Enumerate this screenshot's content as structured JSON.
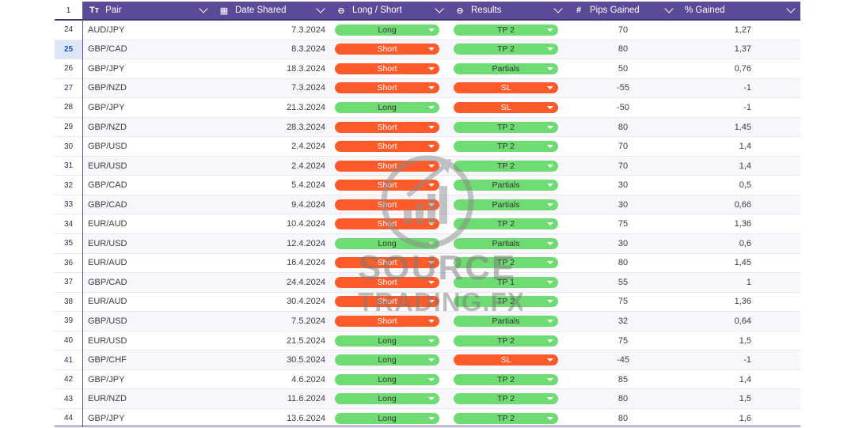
{
  "header": {
    "row_number": "1",
    "columns": [
      {
        "label": "Pair",
        "icon": "text-type-icon",
        "glyph": "Tт"
      },
      {
        "label": "Date Shared",
        "icon": "calendar-icon",
        "glyph": "▦"
      },
      {
        "label": "Long / Short",
        "icon": "dropdown-chip-icon",
        "glyph": "⊖"
      },
      {
        "label": "Results",
        "icon": "dropdown-chip-icon",
        "glyph": "⊖"
      },
      {
        "label": "Pips Gained",
        "icon": "number-icon",
        "glyph": "#"
      },
      {
        "label": "% Gained",
        "icon": "",
        "glyph": ""
      }
    ]
  },
  "selected_row": "25",
  "colors": {
    "header_bg": "#5a4a97",
    "long": "#6edb73",
    "short": "#ff5a2a",
    "tp": "#6edb73",
    "sl": "#ff5a2a"
  },
  "rows": [
    {
      "n": "24",
      "pair": "AUD/JPY",
      "date": "7.3.2024",
      "dir": "Long",
      "result": "TP 2",
      "pips": "70",
      "pct": "1,27"
    },
    {
      "n": "25",
      "pair": "GBP/CAD",
      "date": "8.3.2024",
      "dir": "Short",
      "result": "TP 2",
      "pips": "80",
      "pct": "1,37"
    },
    {
      "n": "26",
      "pair": "GBP/JPY",
      "date": "18.3.2024",
      "dir": "Short",
      "result": "Partials",
      "pips": "50",
      "pct": "0,76"
    },
    {
      "n": "27",
      "pair": "GBP/NZD",
      "date": "7.3.2024",
      "dir": "Short",
      "result": "SL",
      "pips": "-55",
      "pct": "-1"
    },
    {
      "n": "28",
      "pair": "GBP/JPY",
      "date": "21.3.2024",
      "dir": "Long",
      "result": "SL",
      "pips": "-50",
      "pct": "-1"
    },
    {
      "n": "29",
      "pair": "GBP/NZD",
      "date": "28.3.2024",
      "dir": "Short",
      "result": "TP 2",
      "pips": "80",
      "pct": "1,45"
    },
    {
      "n": "30",
      "pair": "GBP/USD",
      "date": "2.4.2024",
      "dir": "Short",
      "result": "TP 2",
      "pips": "70",
      "pct": "1,4"
    },
    {
      "n": "31",
      "pair": "EUR/USD",
      "date": "2.4.2024",
      "dir": "Short",
      "result": "TP 2",
      "pips": "70",
      "pct": "1,4"
    },
    {
      "n": "32",
      "pair": "GBP/CAD",
      "date": "5.4.2024",
      "dir": "Short",
      "result": "Partials",
      "pips": "30",
      "pct": "0,5"
    },
    {
      "n": "33",
      "pair": "GBP/CAD",
      "date": "9.4.2024",
      "dir": "Short",
      "result": "Partials",
      "pips": "30",
      "pct": "0,66"
    },
    {
      "n": "34",
      "pair": "EUR/AUD",
      "date": "10.4.2024",
      "dir": "Short",
      "result": "TP 2",
      "pips": "75",
      "pct": "1,36"
    },
    {
      "n": "35",
      "pair": "EUR/USD",
      "date": "12.4.2024",
      "dir": "Long",
      "result": "Partials",
      "pips": "30",
      "pct": "0,6"
    },
    {
      "n": "36",
      "pair": "EUR/AUD",
      "date": "16.4.2024",
      "dir": "Short",
      "result": "TP 2",
      "pips": "80",
      "pct": "1,45"
    },
    {
      "n": "37",
      "pair": "GBP/CAD",
      "date": "24.4.2024",
      "dir": "Short",
      "result": "TP 1",
      "pips": "55",
      "pct": "1"
    },
    {
      "n": "38",
      "pair": "EUR/AUD",
      "date": "30.4.2024",
      "dir": "Short",
      "result": "TP 2",
      "pips": "75",
      "pct": "1,36"
    },
    {
      "n": "39",
      "pair": "GBP/USD",
      "date": "7.5.2024",
      "dir": "Short",
      "result": "Partials",
      "pips": "32",
      "pct": "0,64"
    },
    {
      "n": "40",
      "pair": "EUR/USD",
      "date": "21.5.2024",
      "dir": "Long",
      "result": "TP 2",
      "pips": "75",
      "pct": "1,5"
    },
    {
      "n": "41",
      "pair": "GBP/CHF",
      "date": "30.5.2024",
      "dir": "Long",
      "result": "SL",
      "pips": "-45",
      "pct": "-1"
    },
    {
      "n": "42",
      "pair": "GBP/JPY",
      "date": "4.6.2024",
      "dir": "Long",
      "result": "TP 2",
      "pips": "85",
      "pct": "1,4"
    },
    {
      "n": "43",
      "pair": "EUR/NZD",
      "date": "11.6.2024",
      "dir": "Long",
      "result": "TP 2",
      "pips": "80",
      "pct": "1,5"
    },
    {
      "n": "44",
      "pair": "GBP/JPY",
      "date": "13.6.2024",
      "dir": "Long",
      "result": "TP 2",
      "pips": "80",
      "pct": "1,6"
    }
  ],
  "watermark": {
    "line1": "SOURCE",
    "line2": "TRADING.FX"
  }
}
